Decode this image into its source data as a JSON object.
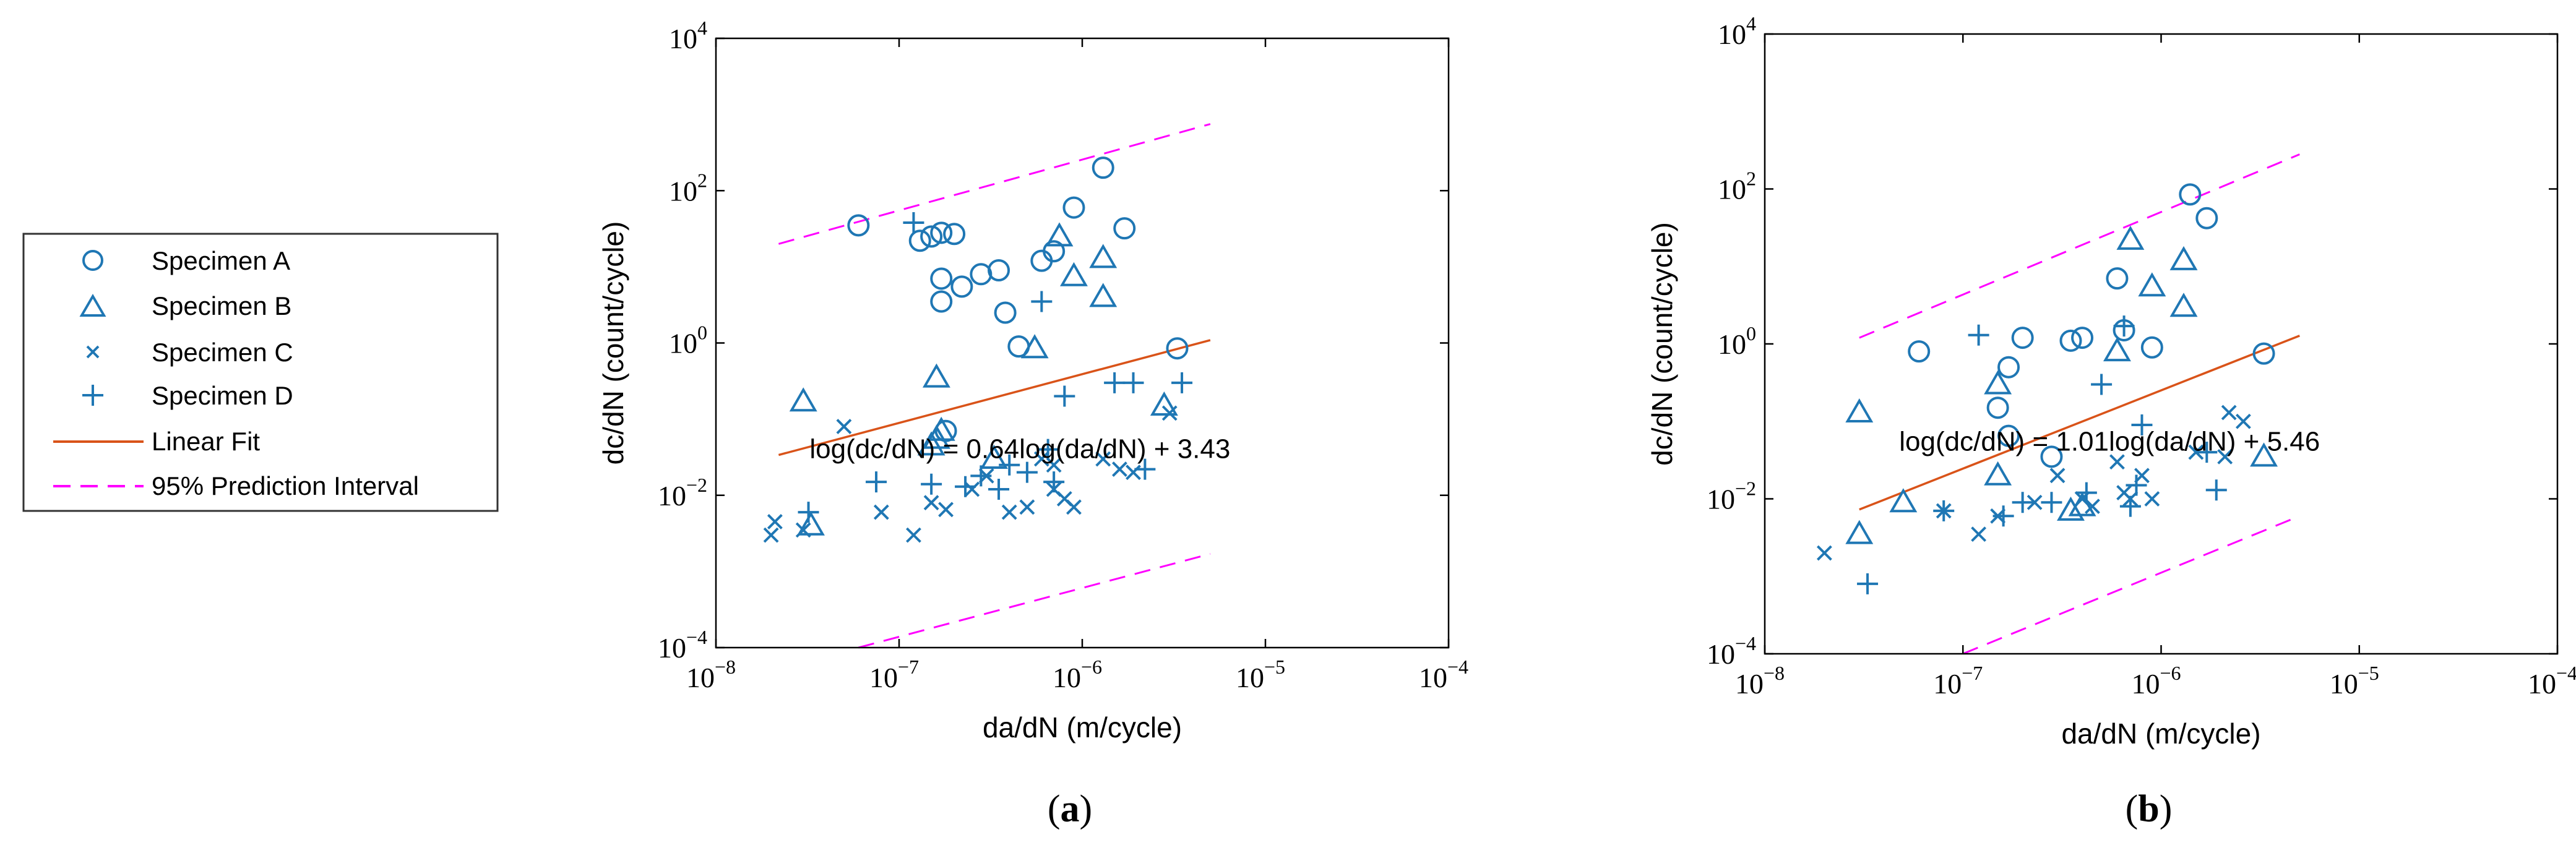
{
  "legend": {
    "entries": [
      {
        "label": "Specimen A",
        "marker": "circle"
      },
      {
        "label": "Specimen B",
        "marker": "triangle"
      },
      {
        "label": "Specimen C",
        "marker": "x"
      },
      {
        "label": "Specimen D",
        "marker": "plus"
      },
      {
        "label": "Linear Fit",
        "marker": "solid-line"
      },
      {
        "label": "95% Prediction Interval",
        "marker": "dashed-line"
      }
    ]
  },
  "colors": {
    "marker": "#1f77b4",
    "fit": "#d95319",
    "interval": "#ff00ff",
    "axis": "#000000"
  },
  "chart_data": [
    {
      "type": "scatter",
      "panel_label": "(a)",
      "panel_letter": "a",
      "xlabel": "da/dN (m/cycle)",
      "ylabel": "dc/dN (count/cycle)",
      "xscale": "log",
      "yscale": "log",
      "xlim": [
        1e-08,
        0.0001
      ],
      "ylim": [
        0.0001,
        10000.0
      ],
      "xticks": [
        {
          "base": "10",
          "exp": "−8"
        },
        {
          "base": "10",
          "exp": "−7"
        },
        {
          "base": "10",
          "exp": "−6"
        },
        {
          "base": "10",
          "exp": "−5"
        },
        {
          "base": "10",
          "exp": "−4"
        }
      ],
      "yticks": [
        {
          "base": "10",
          "exp": "−4"
        },
        {
          "base": "10",
          "exp": "−2"
        },
        {
          "base": "10",
          "exp": "0"
        },
        {
          "base": "10",
          "exp": "2"
        },
        {
          "base": "10",
          "exp": "4"
        }
      ],
      "annotation": "log(dc/dN) = 0.64log(da/dN) + 3.43",
      "fit": {
        "slope": 0.64,
        "intercept": 3.43,
        "x_range": [
          2.2e-08,
          5e-06
        ]
      },
      "prediction_interval": {
        "upper": [
          [
            2.2e-08,
            20
          ],
          [
            5e-06,
            750
          ]
        ],
        "lower": [
          [
            6e-08,
            0.0001
          ],
          [
            5e-06,
            0.0017
          ]
        ]
      },
      "series": [
        {
          "name": "Specimen A",
          "marker": "circle",
          "points": [
            [
              6e-08,
              35
            ],
            [
              1.3e-07,
              22
            ],
            [
              1.5e-07,
              25
            ],
            [
              1.7e-07,
              28
            ],
            [
              2e-07,
              27
            ],
            [
              1.7e-07,
              7
            ],
            [
              1.7e-07,
              3.5
            ],
            [
              2.2e-07,
              5.5
            ],
            [
              2.8e-07,
              8
            ],
            [
              3.5e-07,
              9
            ],
            [
              3.8e-07,
              2.5
            ],
            [
              6e-07,
              12
            ],
            [
              7e-07,
              16
            ],
            [
              9e-07,
              60
            ],
            [
              1.3e-06,
              200
            ],
            [
              1.7e-06,
              32
            ],
            [
              4.5e-07,
              0.9
            ],
            [
              3.3e-06,
              0.85
            ],
            [
              1.8e-07,
              0.07
            ]
          ]
        },
        {
          "name": "Specimen B",
          "marker": "triangle",
          "points": [
            [
              3e-08,
              0.17
            ],
            [
              1.6e-07,
              0.35
            ],
            [
              1.6e-07,
              0.055
            ],
            [
              1.7e-07,
              0.07
            ],
            [
              3.3e-08,
              0.004
            ],
            [
              5.5e-07,
              0.85
            ],
            [
              7.5e-07,
              25
            ],
            [
              9e-07,
              7.5
            ],
            [
              1.3e-06,
              13
            ],
            [
              1.3e-06,
              4
            ],
            [
              2.8e-06,
              0.15
            ],
            [
              3.3e-07,
              0.03
            ],
            [
              1.5e-07,
              0.045
            ]
          ]
        },
        {
          "name": "Specimen C",
          "marker": "x",
          "points": [
            [
              2e-08,
              0.003
            ],
            [
              2.1e-08,
              0.0045
            ],
            [
              3e-08,
              0.0035
            ],
            [
              5e-08,
              0.08
            ],
            [
              8e-08,
              0.006
            ],
            [
              1.2e-07,
              0.003
            ],
            [
              1.5e-07,
              0.008
            ],
            [
              1.8e-07,
              0.0065
            ],
            [
              2.5e-07,
              0.012
            ],
            [
              3e-07,
              0.018
            ],
            [
              4e-07,
              0.006
            ],
            [
              5e-07,
              0.007
            ],
            [
              6e-07,
              0.03
            ],
            [
              7e-07,
              0.012
            ],
            [
              8e-07,
              0.009
            ],
            [
              9e-07,
              0.007
            ],
            [
              7e-07,
              0.025
            ],
            [
              1.3e-06,
              0.03
            ],
            [
              1.6e-06,
              0.022
            ],
            [
              1.9e-06,
              0.02
            ],
            [
              3e-06,
              0.12
            ]
          ]
        },
        {
          "name": "Specimen D",
          "marker": "plus",
          "points": [
            [
              3.2e-08,
              0.006
            ],
            [
              7.5e-08,
              0.015
            ],
            [
              1.2e-07,
              38
            ],
            [
              1.5e-07,
              0.014
            ],
            [
              2.3e-07,
              0.013
            ],
            [
              2.8e-07,
              0.018
            ],
            [
              3.5e-07,
              0.012
            ],
            [
              4e-07,
              0.025
            ],
            [
              5e-07,
              0.02
            ],
            [
              6e-07,
              3.5
            ],
            [
              6.5e-07,
              0.04
            ],
            [
              7e-07,
              0.015
            ],
            [
              8e-07,
              0.2
            ],
            [
              1.5e-06,
              0.3
            ],
            [
              1.9e-06,
              0.3
            ],
            [
              3.5e-06,
              0.3
            ],
            [
              2.2e-06,
              0.022
            ]
          ]
        }
      ]
    },
    {
      "type": "scatter",
      "panel_label": "(b)",
      "panel_letter": "b",
      "xlabel": "da/dN (m/cycle)",
      "ylabel": "dc/dN (count/cycle)",
      "xscale": "log",
      "yscale": "log",
      "xlim": [
        1e-08,
        0.0001
      ],
      "ylim": [
        0.0001,
        10000.0
      ],
      "xticks": [
        {
          "base": "10",
          "exp": "−8"
        },
        {
          "base": "10",
          "exp": "−7"
        },
        {
          "base": "10",
          "exp": "−6"
        },
        {
          "base": "10",
          "exp": "−5"
        },
        {
          "base": "10",
          "exp": "−4"
        }
      ],
      "yticks": [
        {
          "base": "10",
          "exp": "−4"
        },
        {
          "base": "10",
          "exp": "−2"
        },
        {
          "base": "10",
          "exp": "0"
        },
        {
          "base": "10",
          "exp": "2"
        },
        {
          "base": "10",
          "exp": "4"
        }
      ],
      "annotation": "log(dc/dN) = 1.01log(da/dN) + 5.46",
      "fit": {
        "slope": 1.01,
        "intercept": 5.46,
        "x_range": [
          3e-08,
          5e-06
        ]
      },
      "prediction_interval": {
        "upper": [
          [
            3e-08,
            1.2
          ],
          [
            5e-06,
            280
          ]
        ],
        "lower": [
          [
            1e-07,
            0.0001
          ],
          [
            5e-06,
            0.006
          ]
        ]
      },
      "series": [
        {
          "name": "Specimen A",
          "marker": "circle",
          "points": [
            [
              6e-08,
              0.8
            ],
            [
              1.7e-07,
              0.5
            ],
            [
              2e-07,
              1.2
            ],
            [
              1.5e-07,
              0.15
            ],
            [
              1.7e-07,
              0.065
            ],
            [
              3.5e-07,
              1.1
            ],
            [
              4e-07,
              1.2
            ],
            [
              6e-07,
              7
            ],
            [
              6.5e-07,
              1.5
            ],
            [
              9e-07,
              0.9
            ],
            [
              1.4e-06,
              85
            ],
            [
              1.7e-06,
              42
            ],
            [
              3.3e-06,
              0.75
            ],
            [
              2.8e-07,
              0.035
            ]
          ]
        },
        {
          "name": "Specimen B",
          "marker": "triangle",
          "points": [
            [
              3e-08,
              0.13
            ],
            [
              3e-08,
              0.0035
            ],
            [
              5e-08,
              0.009
            ],
            [
              1.5e-07,
              0.02
            ],
            [
              1.5e-07,
              0.3
            ],
            [
              3.5e-07,
              0.007
            ],
            [
              4e-07,
              0.008
            ],
            [
              6e-07,
              0.8
            ],
            [
              7e-07,
              22
            ],
            [
              9e-07,
              5.5
            ],
            [
              1.3e-06,
              12
            ],
            [
              1.3e-06,
              3
            ],
            [
              3.3e-06,
              0.035
            ]
          ]
        },
        {
          "name": "Specimen C",
          "marker": "x",
          "points": [
            [
              2e-08,
              0.002
            ],
            [
              8e-08,
              0.007
            ],
            [
              1.2e-07,
              0.0035
            ],
            [
              1.5e-07,
              0.006
            ],
            [
              2.3e-07,
              0.009
            ],
            [
              3e-07,
              0.02
            ],
            [
              4e-07,
              0.01
            ],
            [
              4.5e-07,
              0.008
            ],
            [
              6e-07,
              0.03
            ],
            [
              6.5e-07,
              0.012
            ],
            [
              7e-07,
              0.01
            ],
            [
              8e-07,
              0.02
            ],
            [
              9e-07,
              0.01
            ],
            [
              1.5e-06,
              0.04
            ],
            [
              2.1e-06,
              0.035
            ],
            [
              2.6e-06,
              0.1
            ],
            [
              2.2e-06,
              0.13
            ]
          ]
        },
        {
          "name": "Specimen D",
          "marker": "plus",
          "points": [
            [
              3.3e-08,
              0.0008
            ],
            [
              8e-08,
              0.007
            ],
            [
              1.2e-07,
              1.3
            ],
            [
              1.6e-07,
              0.006
            ],
            [
              2e-07,
              0.009
            ],
            [
              2.8e-07,
              0.009
            ],
            [
              4.2e-07,
              0.012
            ],
            [
              5e-07,
              0.3
            ],
            [
              6.5e-07,
              1.7
            ],
            [
              7e-07,
              0.008
            ],
            [
              7.5e-07,
              0.015
            ],
            [
              8e-07,
              0.09
            ],
            [
              1.7e-06,
              0.04
            ],
            [
              1.9e-06,
              0.013
            ]
          ]
        }
      ]
    }
  ]
}
